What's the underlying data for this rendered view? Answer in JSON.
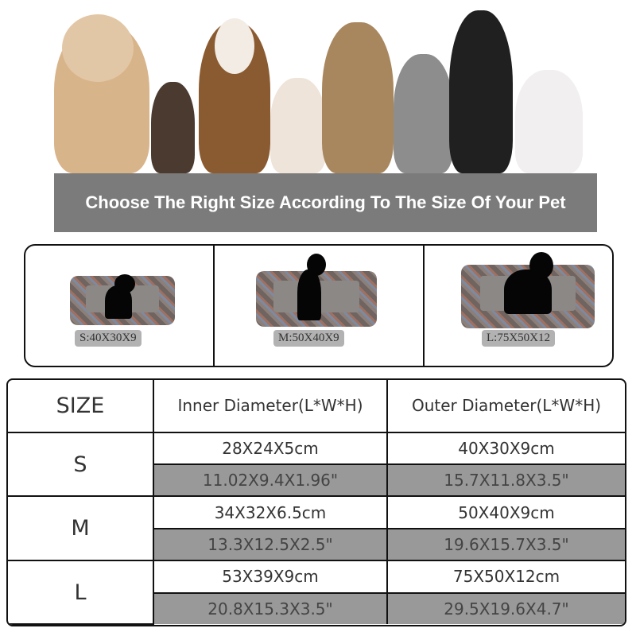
{
  "banner": {
    "text": "Choose The Right Size According To The Size Of Your Pet",
    "color": "#7b7b7b"
  },
  "beds": [
    {
      "label": "S:40X30X9"
    },
    {
      "label": "M:50X40X9"
    },
    {
      "label": "L:75X50X12"
    }
  ],
  "table": {
    "headers": [
      "SIZE",
      "Inner Diameter(L*W*H)",
      "Outer Diameter(L*W*H)"
    ],
    "rows": [
      {
        "size": "S",
        "inner_cm": "28X24X5cm",
        "outer_cm": "40X30X9cm",
        "inner_in": "11.02X9.4X1.96\"",
        "outer_in": "15.7X11.8X3.5\""
      },
      {
        "size": "M",
        "inner_cm": "34X32X6.5cm",
        "outer_cm": "50X40X9cm",
        "inner_in": "13.3X12.5X2.5\"",
        "outer_in": "19.6X15.7X3.5\""
      },
      {
        "size": "L",
        "inner_cm": "53X39X9cm",
        "outer_cm": "75X50X12cm",
        "inner_in": "20.8X15.3X3.5\"",
        "outer_in": "29.5X19.6X4.7\""
      }
    ],
    "inch_row_color": "#999999"
  }
}
